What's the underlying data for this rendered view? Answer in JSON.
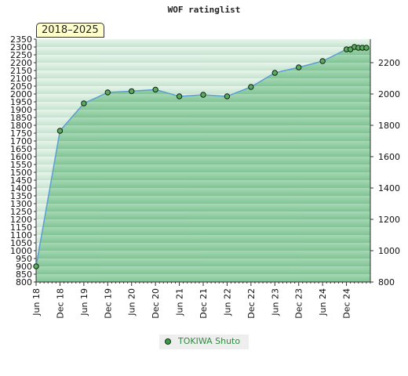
{
  "chart_title": "WOF ratinglist",
  "period_badge": "2018–2025",
  "legend": {
    "label": "TOKIWA Shuto",
    "color": "#3a9a4a"
  },
  "colors": {
    "fill_dark": "#7fc494",
    "fill_light": "#e8f5ec",
    "line": "#5a9fd4",
    "point": "#5aaa60"
  },
  "chart_data": {
    "type": "area",
    "title": "WOF ratinglist",
    "xlabel": "",
    "ylabel": "",
    "ylim": [
      800,
      2350
    ],
    "left_ticks": [
      800,
      850,
      900,
      950,
      1000,
      1050,
      1100,
      1150,
      1200,
      1250,
      1300,
      1350,
      1400,
      1450,
      1500,
      1550,
      1600,
      1650,
      1700,
      1750,
      1800,
      1850,
      1900,
      1950,
      2000,
      2050,
      2100,
      2150,
      2200,
      2250,
      2300,
      2350
    ],
    "right_ticks": [
      800,
      1000,
      1200,
      1400,
      1600,
      1800,
      2000,
      2200
    ],
    "x_ticks": [
      {
        "label": "Jun 18",
        "m": 0
      },
      {
        "label": "Dec 18",
        "m": 6
      },
      {
        "label": "Jun 19",
        "m": 12
      },
      {
        "label": "Dec 19",
        "m": 18
      },
      {
        "label": "Jun 20",
        "m": 24
      },
      {
        "label": "Dec 20",
        "m": 30
      },
      {
        "label": "Jun 21",
        "m": 36
      },
      {
        "label": "Dec 21",
        "m": 42
      },
      {
        "label": "Jun 22",
        "m": 48
      },
      {
        "label": "Dec 22",
        "m": 54
      },
      {
        "label": "Jun 23",
        "m": 60
      },
      {
        "label": "Dec 23",
        "m": 66
      },
      {
        "label": "Jun 24",
        "m": 72
      },
      {
        "label": "Dec 24",
        "m": 78
      }
    ],
    "x_max_m": 84,
    "grid": false,
    "legend_position": "bottom-center",
    "series": [
      {
        "name": "TOKIWA Shuto",
        "points": [
          {
            "m": 0,
            "y": 900
          },
          {
            "m": 6,
            "y": 1765
          },
          {
            "m": 12,
            "y": 1940
          },
          {
            "m": 18,
            "y": 2010
          },
          {
            "m": 24,
            "y": 2018
          },
          {
            "m": 30,
            "y": 2028
          },
          {
            "m": 36,
            "y": 1985
          },
          {
            "m": 42,
            "y": 1995
          },
          {
            "m": 48,
            "y": 1985
          },
          {
            "m": 54,
            "y": 2045
          },
          {
            "m": 60,
            "y": 2135
          },
          {
            "m": 66,
            "y": 2170
          },
          {
            "m": 72,
            "y": 2210
          },
          {
            "m": 78,
            "y": 2285
          },
          {
            "m": 79,
            "y": 2285
          },
          {
            "m": 80,
            "y": 2300
          },
          {
            "m": 81,
            "y": 2295
          },
          {
            "m": 82,
            "y": 2295
          },
          {
            "m": 83,
            "y": 2295
          }
        ]
      }
    ]
  }
}
